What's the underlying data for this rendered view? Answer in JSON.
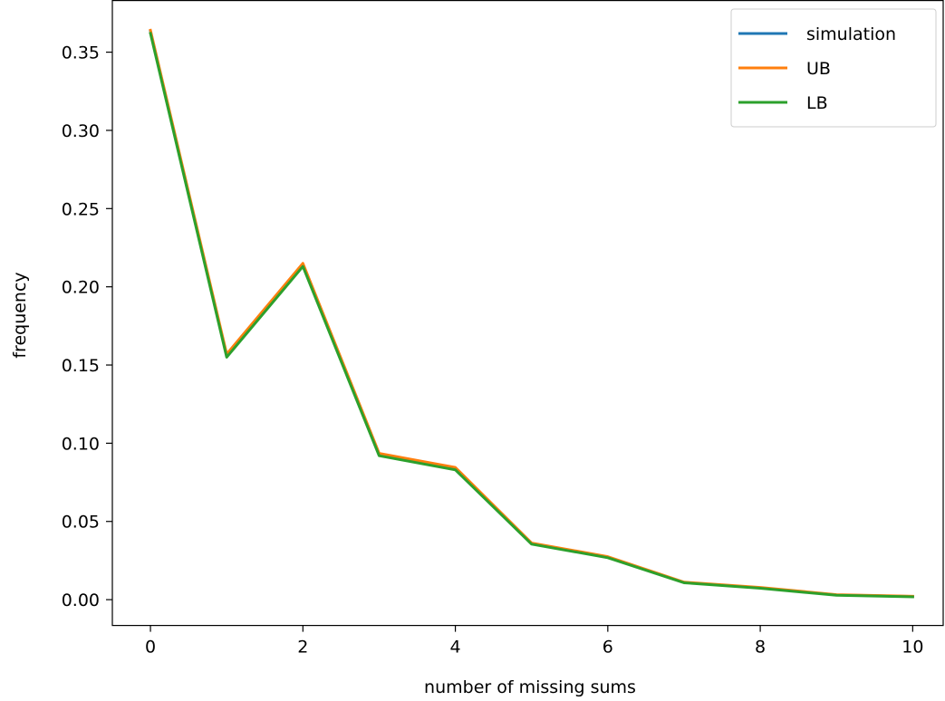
{
  "chart_data": {
    "type": "line",
    "xlabel": "number of missing sums",
    "ylabel": "frequency",
    "xlim": [
      -0.5,
      10.4
    ],
    "ylim": [
      -0.0165,
      0.383
    ],
    "xticks": [
      0,
      2,
      4,
      6,
      8,
      10
    ],
    "yticks": [
      0.0,
      0.05,
      0.1,
      0.15,
      0.2,
      0.25,
      0.3,
      0.35
    ],
    "xtick_labels": [
      "0",
      "2",
      "4",
      "6",
      "8",
      "10"
    ],
    "ytick_labels": [
      "0.00",
      "0.05",
      "0.10",
      "0.15",
      "0.20",
      "0.25",
      "0.30",
      "0.35"
    ],
    "grid": false,
    "legend_position": "top-right",
    "x": [
      0,
      1,
      2,
      3,
      4,
      5,
      6,
      7,
      8,
      9,
      10
    ],
    "series": [
      {
        "name": "simulation",
        "color": "#1f77b4",
        "values": [
          0.3635,
          0.156,
          0.214,
          0.093,
          0.0835,
          0.036,
          0.027,
          0.011,
          0.0075,
          0.003,
          0.002
        ]
      },
      {
        "name": "UB",
        "color": "#ff7f0e",
        "values": [
          0.364,
          0.157,
          0.215,
          0.0935,
          0.0845,
          0.0362,
          0.0275,
          0.0112,
          0.0078,
          0.0032,
          0.0022
        ]
      },
      {
        "name": "LB",
        "color": "#2ca02c",
        "values": [
          0.362,
          0.155,
          0.213,
          0.092,
          0.083,
          0.0355,
          0.0268,
          0.0108,
          0.0073,
          0.0028,
          0.0018
        ]
      }
    ]
  }
}
